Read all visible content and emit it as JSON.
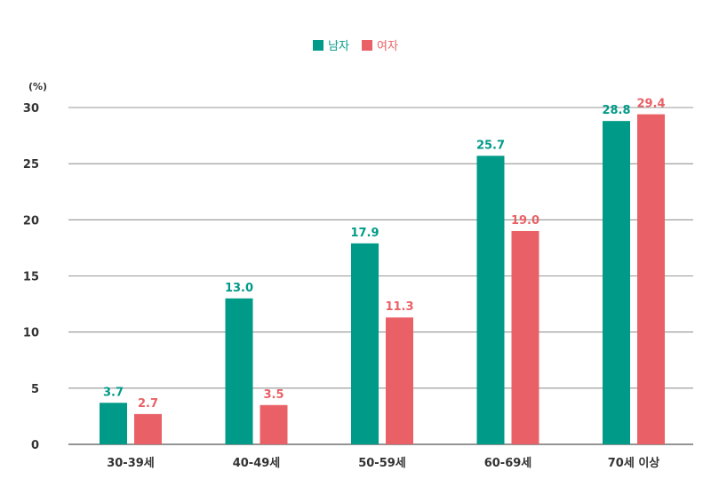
{
  "chart_data": {
    "type": "bar",
    "unit": "(%)",
    "categories": [
      "30-39세",
      "40-49세",
      "50-59세",
      "60-69세",
      "70세 이상"
    ],
    "series": [
      {
        "name": "남자",
        "color": "#009A88",
        "values": [
          3.7,
          13.0,
          17.9,
          25.7,
          28.8
        ]
      },
      {
        "name": "여자",
        "color": "#E96166",
        "values": [
          2.7,
          3.5,
          11.3,
          19.0,
          29.4
        ]
      }
    ],
    "ylim": [
      0,
      30
    ],
    "yticks": [
      0,
      5,
      10,
      15,
      20,
      25,
      30
    ],
    "grid": true,
    "legend_position": "top-center"
  }
}
